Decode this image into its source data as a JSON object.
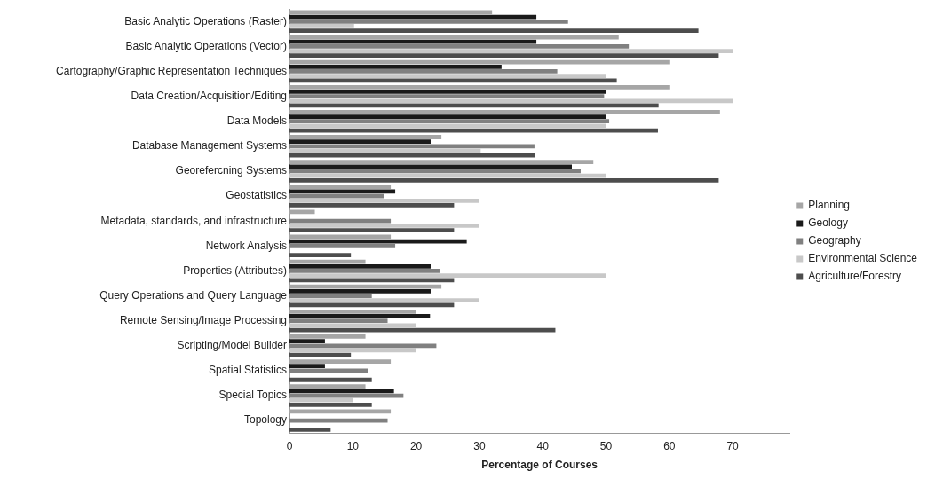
{
  "chart_data": {
    "type": "bar",
    "orientation": "horizontal",
    "xlabel": "Percentage of Courses",
    "categories": [
      "Basic Analytic Operations (Raster)",
      "Basic Analytic Operations (Vector)",
      "Cartography/Graphic Representation Techniques",
      "Data Creation/Acquisition/Editing",
      "Data Models",
      "Database Management Systems",
      "Georefercning Systems",
      "Geostatistics",
      "Metadata, standards, and infrastructure",
      "Network Analysis",
      "Properties (Attributes)",
      "Query Operations and Query Language",
      "Remote Sensing/Image Processing",
      "Scripting/Model Builder",
      "Spatial Statistics",
      "Special Topics",
      "Topology"
    ],
    "series": [
      {
        "name": "Planning",
        "color": "#a6a6a6",
        "values": [
          32,
          52,
          60,
          60,
          68,
          24,
          48,
          16,
          4,
          16,
          12,
          24,
          20,
          12,
          16,
          12,
          16
        ]
      },
      {
        "name": "Geology",
        "color": "#1a1a1a",
        "values": [
          39,
          39,
          33.5,
          50,
          50,
          22.3,
          44.6,
          16.7,
          0,
          28,
          22.3,
          22.3,
          22.2,
          5.6,
          5.6,
          16.5,
          0
        ]
      },
      {
        "name": "Geography",
        "color": "#808080",
        "values": [
          44,
          53.6,
          42.3,
          49.7,
          50.5,
          38.7,
          46,
          15,
          16,
          16.7,
          23.7,
          13,
          15.5,
          23.2,
          12.4,
          18,
          15.5
        ]
      },
      {
        "name": "Environmental Science",
        "color": "#c8c8c8",
        "values": [
          10.2,
          70,
          50,
          70,
          50,
          30.2,
          50,
          30,
          30,
          0,
          50,
          30,
          20,
          20,
          0,
          10,
          0
        ]
      },
      {
        "name": "Agriculture/Forestry",
        "color": "#4d4d4d",
        "values": [
          64.6,
          67.8,
          51.7,
          58.3,
          58.2,
          38.8,
          67.8,
          26,
          26,
          9.7,
          26,
          26,
          42,
          9.7,
          13,
          13,
          6.5
        ]
      }
    ],
    "xlim": [
      0,
      79
    ],
    "xticks": [
      0,
      10,
      20,
      30,
      40,
      50,
      60,
      70
    ],
    "grid": false,
    "legend": "right"
  }
}
